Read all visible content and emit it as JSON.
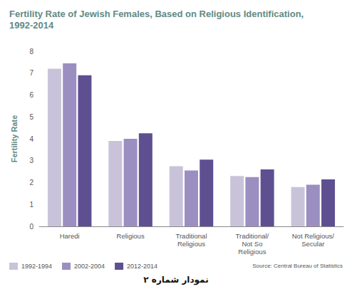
{
  "chart_data": {
    "type": "bar",
    "title": "Fertility Rate of Jewish Females, Based on Religious Identification, 1992-2014",
    "y_label": "Fertility Rate",
    "categories": [
      "Haredi",
      "Religious",
      "Traditional Religious",
      "Traditional/ Not So Religious",
      "Not Religious/ Secular"
    ],
    "series": [
      {
        "name": "1992-1994",
        "color": "#c9c3da",
        "values": [
          7.2,
          3.9,
          2.75,
          2.3,
          1.8
        ]
      },
      {
        "name": "2002-2004",
        "color": "#9a8fc0",
        "values": [
          7.45,
          4.0,
          2.55,
          2.25,
          1.9
        ]
      },
      {
        "name": "2012-2014",
        "color": "#5e4f91",
        "values": [
          6.9,
          4.25,
          3.05,
          2.6,
          2.15
        ]
      }
    ],
    "ylim": [
      0,
      8
    ],
    "yticks": [
      0,
      1,
      2,
      3,
      4,
      5,
      6,
      7,
      8
    ],
    "grid": false,
    "legend": "bottom-left",
    "source": "Source: Central Bureau of Statistics",
    "caption": "نمودار شماره ۲"
  }
}
